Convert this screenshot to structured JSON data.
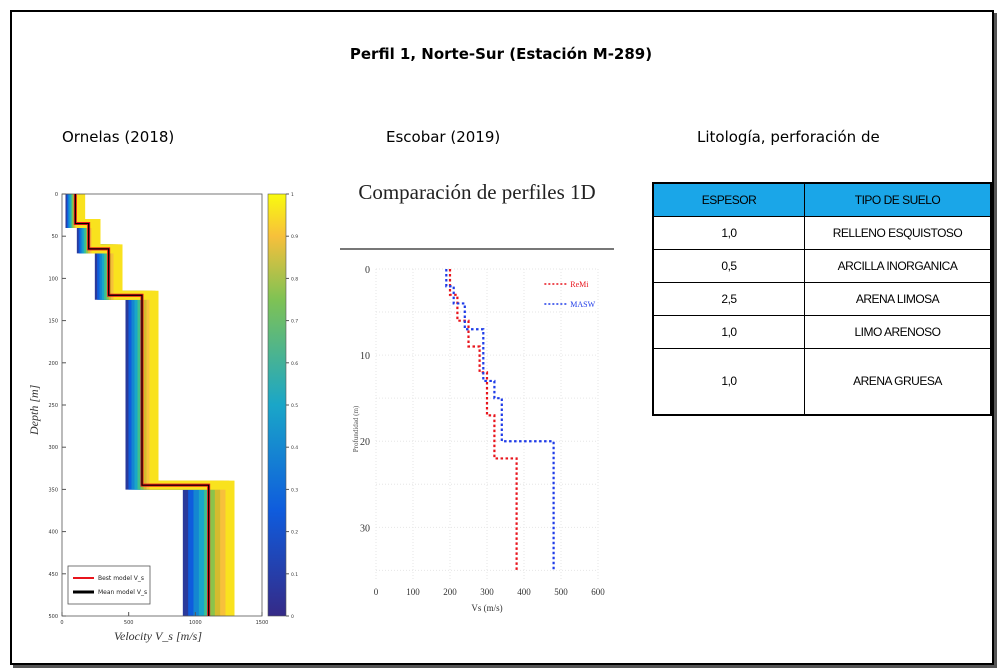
{
  "title": "Perfil 1, Norte-Sur (Estación M-289)",
  "subtitles": {
    "left": "Ornelas (2018)",
    "middle": "Escobar (2019)",
    "right": "Litología, perforación de"
  },
  "chart_data": [
    {
      "type": "line",
      "xlabel": "Velocity V_s [m/s]",
      "ylabel": "Depth [m]",
      "xlim": [
        0,
        1500
      ],
      "ylim": [
        0,
        500
      ],
      "y_ticks": [
        0,
        50,
        100,
        150,
        200,
        250,
        300,
        350,
        400,
        450,
        500
      ],
      "x_ticks": [
        0,
        500,
        1000,
        1500
      ],
      "colorbar_ticks": [
        0,
        0.1,
        0.2,
        0.3,
        0.4,
        0.5,
        0.6,
        0.7,
        0.8,
        0.9,
        1
      ],
      "legend": [
        "Best model V_s",
        "Mean model V_s"
      ],
      "legend_position": "bottom-left",
      "series": [
        {
          "name": "Best model V_s",
          "color": "#e8141c",
          "x": [
            100,
            100,
            200,
            200,
            350,
            350,
            600,
            600,
            1100,
            1100
          ],
          "y": [
            0,
            35,
            35,
            65,
            65,
            120,
            120,
            345,
            345,
            500
          ]
        },
        {
          "name": "Mean model V_s",
          "color": "#000000",
          "x": [
            100,
            100,
            200,
            200,
            350,
            350,
            600,
            600,
            1100,
            1100
          ],
          "y": [
            0,
            35,
            35,
            65,
            65,
            120,
            120,
            345,
            345,
            500
          ]
        }
      ]
    },
    {
      "type": "line",
      "title": "Comparación de perfiles 1D",
      "xlabel": "Vs (m/s)",
      "ylabel": "Profundidad (m)",
      "xlim": [
        0,
        600
      ],
      "ylim": [
        0,
        36
      ],
      "x_ticks": [
        0,
        100,
        200,
        300,
        400,
        500,
        600
      ],
      "y_ticks": [
        0,
        10,
        20,
        30
      ],
      "legend": [
        "ReMi",
        "MASW"
      ],
      "legend_position": "top-right",
      "grid": true,
      "series": [
        {
          "name": "ReMi",
          "color": "#e8141c",
          "x": [
            200,
            200,
            220,
            220,
            250,
            250,
            280,
            280,
            300,
            300,
            320,
            320,
            380,
            380
          ],
          "y": [
            0,
            3,
            3,
            6,
            6,
            9,
            9,
            12,
            12,
            17,
            17,
            22,
            22,
            35
          ]
        },
        {
          "name": "MASW",
          "color": "#1f3ce8",
          "x": [
            190,
            190,
            210,
            210,
            240,
            240,
            290,
            290,
            320,
            320,
            340,
            340,
            480,
            480
          ],
          "y": [
            0,
            2,
            2,
            4,
            4,
            7,
            7,
            13,
            13,
            15,
            15,
            20,
            20,
            35
          ]
        }
      ]
    }
  ],
  "table": {
    "headers": [
      "ESPESOR",
      "TIPO DE SUELO"
    ],
    "rows": [
      [
        "1,0",
        "RELLENO ESQUISTOSO"
      ],
      [
        "0,5",
        "ARCILLA INORGANICA"
      ],
      [
        "2,5",
        "ARENA LIMOSA"
      ],
      [
        "1,0",
        "LIMO ARENOSO"
      ],
      [
        "1,0",
        "ARENA GRUESA"
      ]
    ],
    "header_color": "#1aa6e8"
  }
}
